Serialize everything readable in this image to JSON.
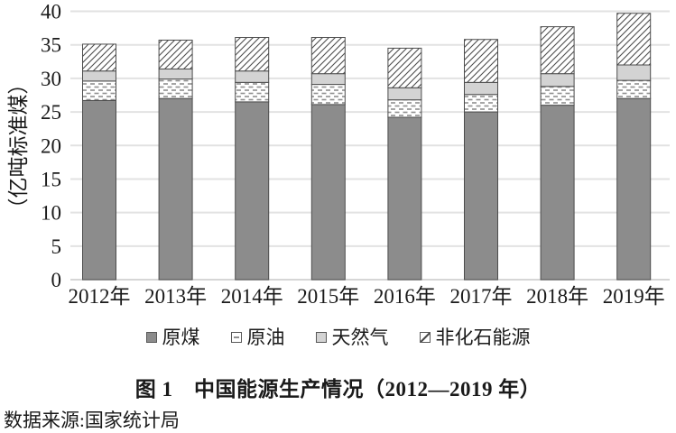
{
  "figure": {
    "caption": "图 1　中国能源生产情况（2012—2019 年）",
    "source": "数据来源:国家统计局"
  },
  "legend": {
    "items": [
      {
        "key": "coal",
        "label": "原煤"
      },
      {
        "key": "oil",
        "label": "原油"
      },
      {
        "key": "gas",
        "label": "天然气"
      },
      {
        "key": "nonfossil",
        "label": "非化石能源"
      }
    ]
  },
  "chart_data": {
    "type": "bar",
    "stacked": true,
    "title": "图 1　中国能源生产情况（2012—2019 年）",
    "ylabel": "（亿吨标准煤）",
    "xlabel": "",
    "categories": [
      "2012年",
      "2013年",
      "2014年",
      "2015年",
      "2016年",
      "2017年",
      "2018年",
      "2019年"
    ],
    "series": [
      {
        "key": "coal",
        "name": "原煤",
        "fill": "#8C8C8C",
        "values": [
          26.7,
          27.0,
          26.5,
          26.1,
          24.2,
          25.0,
          26.0,
          27.0
        ]
      },
      {
        "key": "oil",
        "name": "原油",
        "fill": "pattern:oil",
        "values": [
          2.9,
          2.9,
          2.9,
          3.0,
          2.6,
          2.6,
          2.8,
          2.7
        ]
      },
      {
        "key": "gas",
        "name": "天然气",
        "fill": "#D3D3D3",
        "values": [
          1.5,
          1.5,
          1.7,
          1.6,
          1.8,
          1.8,
          1.9,
          2.3
        ]
      },
      {
        "key": "nonfossil",
        "name": "非化石能源",
        "fill": "pattern:hatch",
        "values": [
          4.0,
          4.3,
          5.0,
          5.4,
          5.9,
          6.4,
          7.0,
          7.7
        ]
      }
    ],
    "totals": [
      35.1,
      35.7,
      36.1,
      36.1,
      34.5,
      35.8,
      37.7,
      39.7
    ],
    "ylim": [
      0,
      40
    ],
    "yticks": [
      0,
      5,
      10,
      15,
      20,
      25,
      30,
      35,
      40
    ],
    "grid": true,
    "legend_position": "bottom",
    "colors": {
      "coal_fill": "#8C8C8C",
      "gas_fill": "#D3D3D3",
      "oil_dash": "#8F8F8F",
      "hatch_line": "#4D4D4D",
      "bar_border": "#4D4D4D",
      "gridline": "#E2E2E2",
      "baseline": "#D6D6D6"
    }
  }
}
